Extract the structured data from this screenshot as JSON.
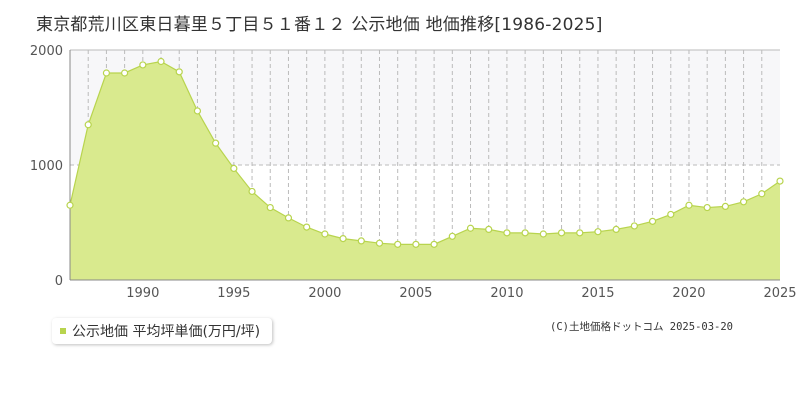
{
  "title": "東京都荒川区東日暮里５丁目５１番１２ 公示地価 地価推移[1986-2025]",
  "legend_label": "公示地価 平均坪単価(万円/坪)",
  "copyright": "(C)土地価格ドットコム 2025-03-20",
  "colors": {
    "fill": "#d9ea8e",
    "line": "#b8d44e",
    "marker_fill": "#ffffff",
    "marker_stroke": "#b8d44e",
    "grid": "#bbbbbb",
    "band": "#f7f7f9"
  },
  "chart_data": {
    "type": "area",
    "title": "東京都荒川区東日暮里５丁目５１番１２ 公示地価 地価推移[1986-2025]",
    "xlabel": "",
    "ylabel": "",
    "xlim": [
      1986,
      2025
    ],
    "ylim": [
      0,
      2000
    ],
    "x_ticks": [
      1990,
      1995,
      2000,
      2005,
      2010,
      2015,
      2020,
      2025
    ],
    "y_ticks": [
      0,
      1000,
      2000
    ],
    "grid": true,
    "legend_position": "bottom-left",
    "series": [
      {
        "name": "公示地価 平均坪単価(万円/坪)",
        "x": [
          1986,
          1987,
          1988,
          1989,
          1990,
          1991,
          1992,
          1993,
          1994,
          1995,
          1996,
          1997,
          1998,
          1999,
          2000,
          2001,
          2002,
          2003,
          2004,
          2005,
          2006,
          2007,
          2008,
          2009,
          2010,
          2011,
          2012,
          2013,
          2014,
          2015,
          2016,
          2017,
          2018,
          2019,
          2020,
          2021,
          2022,
          2023,
          2024,
          2025
        ],
        "values": [
          650,
          1350,
          1800,
          1800,
          1870,
          1900,
          1810,
          1470,
          1190,
          970,
          770,
          630,
          540,
          460,
          400,
          360,
          340,
          320,
          310,
          310,
          310,
          380,
          450,
          440,
          410,
          410,
          400,
          410,
          410,
          420,
          440,
          470,
          510,
          570,
          650,
          630,
          640,
          680,
          750,
          860
        ]
      }
    ]
  }
}
